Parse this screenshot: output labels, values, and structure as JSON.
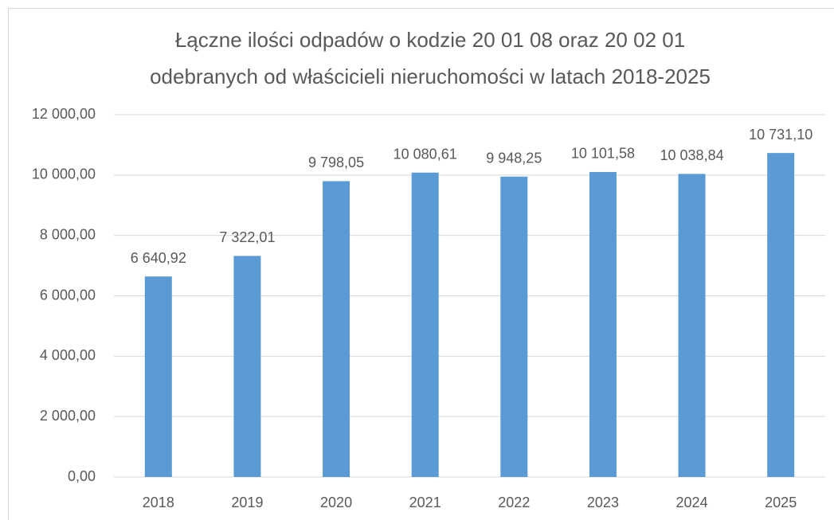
{
  "chart_data": {
    "type": "bar",
    "title": [
      "Łączne ilości odpadów o kodzie 20 01 08 oraz 20 02 01",
      "odebranych od właścicieli nieruchomości w latach 2018-2025"
    ],
    "categories": [
      "2018",
      "2019",
      "2020",
      "2021",
      "2022",
      "2023",
      "2024",
      "2025"
    ],
    "values": [
      6640.92,
      7322.01,
      9798.05,
      10080.61,
      9948.25,
      10101.58,
      10038.84,
      10731.1
    ],
    "value_labels": [
      "6 640,92",
      "7 322,01",
      "9 798,05",
      "10 080,61",
      "9 948,25",
      "10 101,58",
      "10 038,84",
      "10 731,10"
    ],
    "color": "#5b9bd5",
    "ylim": [
      0,
      12000
    ],
    "yticks": [
      {
        "value": 0,
        "label": "0,00"
      },
      {
        "value": 2000,
        "label": "2 000,00"
      },
      {
        "value": 4000,
        "label": "4 000,00"
      },
      {
        "value": 6000,
        "label": "6 000,00"
      },
      {
        "value": 8000,
        "label": "8 000,00"
      },
      {
        "value": 10000,
        "label": "10 000,00"
      },
      {
        "value": 12000,
        "label": "12 000,00"
      }
    ],
    "grid": true
  }
}
